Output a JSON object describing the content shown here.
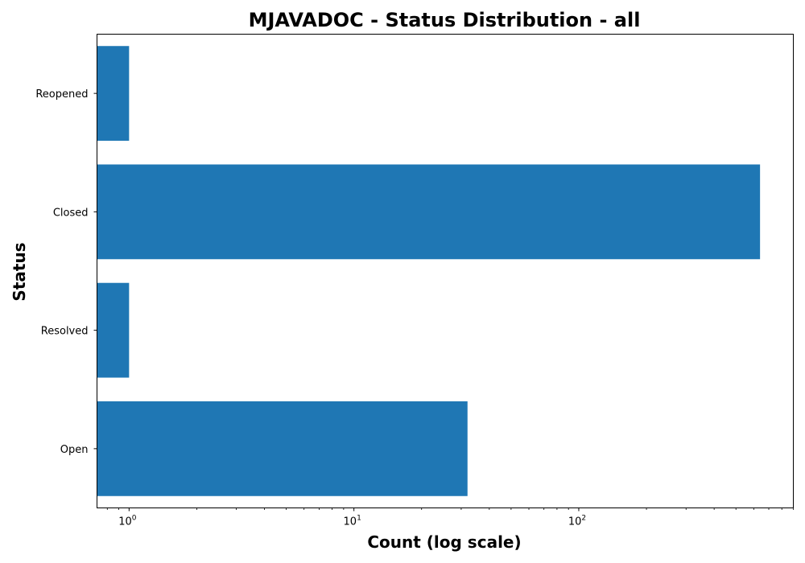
{
  "chart_data": {
    "type": "bar",
    "orientation": "horizontal",
    "title": "MJAVADOC - Status Distribution - all",
    "xlabel": "Count (log scale)",
    "ylabel": "Status",
    "x_scale": "log",
    "xlim": [
      0.72,
      900
    ],
    "x_ticks": [
      {
        "value": 1,
        "base": "10",
        "exp": "0"
      },
      {
        "value": 10,
        "base": "10",
        "exp": "1"
      },
      {
        "value": 100,
        "base": "10",
        "exp": "2"
      }
    ],
    "categories": [
      "Open",
      "Resolved",
      "Closed",
      "Reopened"
    ],
    "values": [
      32,
      1,
      640,
      1
    ],
    "bar_color": "#1f77b4",
    "grid": false,
    "legend": "none"
  }
}
